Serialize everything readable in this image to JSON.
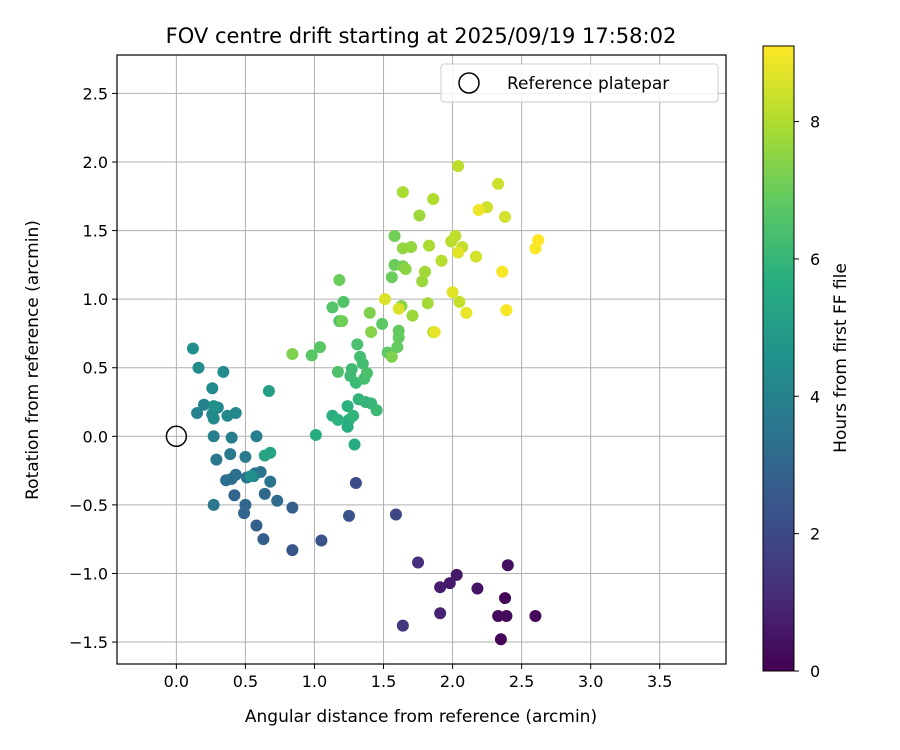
{
  "chart_data": {
    "type": "scatter",
    "title": "FOV centre drift starting at 2025/09/19 17:58:02",
    "xlabel": "Angular distance from reference (arcmin)",
    "ylabel": "Rotation from reference (arcmin)",
    "xlim": [
      -0.43,
      3.98
    ],
    "ylim": [
      -1.66,
      2.78
    ],
    "xticks": [
      0.0,
      0.5,
      1.0,
      1.5,
      2.0,
      2.5,
      3.0,
      3.5
    ],
    "xtick_labels": [
      "0.0",
      "0.5",
      "1.0",
      "1.5",
      "2.0",
      "2.5",
      "3.0",
      "3.5"
    ],
    "yticks": [
      -1.5,
      -1.0,
      -0.5,
      0.0,
      0.5,
      1.0,
      1.5,
      2.0,
      2.5
    ],
    "ytick_labels": [
      "−1.5",
      "−1.0",
      "−0.5",
      "0.0",
      "0.5",
      "1.0",
      "1.5",
      "2.0",
      "2.5"
    ],
    "grid": true,
    "legend": {
      "position": "top-right",
      "label": "Reference platepar"
    },
    "reference_point": {
      "x": 0.0,
      "y": 0.0
    },
    "colorbar": {
      "label": "Hours from first FF file",
      "range": [
        0,
        9.1
      ],
      "ticks": [
        0,
        2,
        4,
        6,
        8
      ],
      "tick_labels": [
        "0",
        "2",
        "4",
        "6",
        "8"
      ],
      "colormap": "viridis"
    },
    "points": [
      {
        "x": 2.38,
        "y": -1.18,
        "h": 0.1
      },
      {
        "x": 2.35,
        "y": -1.48,
        "h": 0.1
      },
      {
        "x": 2.6,
        "y": -1.31,
        "h": 0.15
      },
      {
        "x": 2.39,
        "y": -1.31,
        "h": 0.2
      },
      {
        "x": 2.33,
        "y": -1.31,
        "h": 0.2
      },
      {
        "x": 2.4,
        "y": -0.94,
        "h": 0.4
      },
      {
        "x": 2.18,
        "y": -1.11,
        "h": 0.5
      },
      {
        "x": 2.03,
        "y": -1.01,
        "h": 0.6
      },
      {
        "x": 1.98,
        "y": -1.07,
        "h": 0.6
      },
      {
        "x": 1.91,
        "y": -1.1,
        "h": 0.7
      },
      {
        "x": 1.91,
        "y": -1.29,
        "h": 0.9
      },
      {
        "x": 1.75,
        "y": -0.92,
        "h": 1.2
      },
      {
        "x": 1.64,
        "y": -1.38,
        "h": 1.4
      },
      {
        "x": 1.59,
        "y": -0.57,
        "h": 1.9
      },
      {
        "x": 1.3,
        "y": -0.34,
        "h": 2.1
      },
      {
        "x": 1.25,
        "y": -0.58,
        "h": 2.3
      },
      {
        "x": 1.05,
        "y": -0.76,
        "h": 2.3
      },
      {
        "x": 0.84,
        "y": -0.83,
        "h": 2.4
      },
      {
        "x": 0.84,
        "y": -0.52,
        "h": 2.7
      },
      {
        "x": 0.63,
        "y": -0.75,
        "h": 2.7
      },
      {
        "x": 0.58,
        "y": -0.65,
        "h": 2.8
      },
      {
        "x": 0.49,
        "y": -0.56,
        "h": 2.9
      },
      {
        "x": 0.5,
        "y": -0.5,
        "h": 3.0
      },
      {
        "x": 0.42,
        "y": -0.43,
        "h": 3.0
      },
      {
        "x": 0.64,
        "y": -0.42,
        "h": 3.1
      },
      {
        "x": 0.73,
        "y": -0.47,
        "h": 3.2
      },
      {
        "x": 0.4,
        "y": -0.31,
        "h": 3.2
      },
      {
        "x": 0.36,
        "y": -0.32,
        "h": 3.3
      },
      {
        "x": 0.43,
        "y": -0.28,
        "h": 3.3
      },
      {
        "x": 0.51,
        "y": -0.3,
        "h": 3.4
      },
      {
        "x": 0.57,
        "y": -0.27,
        "h": 3.4
      },
      {
        "x": 0.61,
        "y": -0.26,
        "h": 3.5
      },
      {
        "x": 0.68,
        "y": -0.33,
        "h": 3.5
      },
      {
        "x": 0.27,
        "y": -0.5,
        "h": 3.6
      },
      {
        "x": 0.29,
        "y": -0.17,
        "h": 3.6
      },
      {
        "x": 0.39,
        "y": -0.13,
        "h": 3.7
      },
      {
        "x": 0.5,
        "y": -0.15,
        "h": 3.7
      },
      {
        "x": 0.56,
        "y": -0.29,
        "h": 3.8
      },
      {
        "x": 0.4,
        "y": -0.01,
        "h": 3.8
      },
      {
        "x": 0.27,
        "y": 0.0,
        "h": 3.9
      },
      {
        "x": 0.58,
        "y": 0.0,
        "h": 3.9
      },
      {
        "x": 0.15,
        "y": 0.17,
        "h": 4.0
      },
      {
        "x": 0.2,
        "y": 0.23,
        "h": 4.0
      },
      {
        "x": 0.26,
        "y": 0.16,
        "h": 4.1
      },
      {
        "x": 0.3,
        "y": 0.21,
        "h": 4.1
      },
      {
        "x": 0.37,
        "y": 0.15,
        "h": 4.2
      },
      {
        "x": 0.43,
        "y": 0.17,
        "h": 4.2
      },
      {
        "x": 0.27,
        "y": 0.13,
        "h": 4.3
      },
      {
        "x": 0.26,
        "y": 0.35,
        "h": 4.3
      },
      {
        "x": 0.34,
        "y": 0.47,
        "h": 4.4
      },
      {
        "x": 0.16,
        "y": 0.5,
        "h": 4.4
      },
      {
        "x": 0.12,
        "y": 0.64,
        "h": 4.5
      },
      {
        "x": 0.27,
        "y": 0.22,
        "h": 4.6
      },
      {
        "x": 0.54,
        "y": -0.29,
        "h": 4.6
      },
      {
        "x": 0.67,
        "y": 0.33,
        "h": 5.1
      },
      {
        "x": 0.64,
        "y": -0.14,
        "h": 5.3
      },
      {
        "x": 0.68,
        "y": -0.12,
        "h": 5.3
      },
      {
        "x": 1.01,
        "y": 0.01,
        "h": 5.6
      },
      {
        "x": 1.29,
        "y": -0.06,
        "h": 5.5
      },
      {
        "x": 1.24,
        "y": 0.07,
        "h": 5.6
      },
      {
        "x": 1.25,
        "y": 0.12,
        "h": 5.7
      },
      {
        "x": 1.13,
        "y": 0.15,
        "h": 5.7
      },
      {
        "x": 1.17,
        "y": 0.12,
        "h": 5.8
      },
      {
        "x": 1.24,
        "y": 0.22,
        "h": 5.8
      },
      {
        "x": 1.28,
        "y": 0.15,
        "h": 5.9
      },
      {
        "x": 1.32,
        "y": 0.27,
        "h": 5.9
      },
      {
        "x": 1.37,
        "y": 0.25,
        "h": 6.0
      },
      {
        "x": 1.41,
        "y": 0.24,
        "h": 6.0
      },
      {
        "x": 1.45,
        "y": 0.19,
        "h": 6.1
      },
      {
        "x": 1.3,
        "y": 0.39,
        "h": 6.1
      },
      {
        "x": 1.26,
        "y": 0.44,
        "h": 6.2
      },
      {
        "x": 1.27,
        "y": 0.49,
        "h": 6.2
      },
      {
        "x": 1.33,
        "y": 0.58,
        "h": 6.3
      },
      {
        "x": 1.35,
        "y": 0.53,
        "h": 6.3
      },
      {
        "x": 1.36,
        "y": 0.42,
        "h": 6.3
      },
      {
        "x": 1.38,
        "y": 0.46,
        "h": 6.4
      },
      {
        "x": 1.31,
        "y": 0.67,
        "h": 6.4
      },
      {
        "x": 1.17,
        "y": 0.47,
        "h": 6.5
      },
      {
        "x": 1.18,
        "y": 0.84,
        "h": 6.5
      },
      {
        "x": 1.21,
        "y": 0.98,
        "h": 6.6
      },
      {
        "x": 1.13,
        "y": 0.94,
        "h": 6.6
      },
      {
        "x": 1.04,
        "y": 0.65,
        "h": 6.7
      },
      {
        "x": 0.98,
        "y": 0.59,
        "h": 6.7
      },
      {
        "x": 1.49,
        "y": 0.82,
        "h": 6.8
      },
      {
        "x": 1.53,
        "y": 0.61,
        "h": 6.8
      },
      {
        "x": 1.6,
        "y": 0.65,
        "h": 6.9
      },
      {
        "x": 1.61,
        "y": 0.72,
        "h": 6.9
      },
      {
        "x": 1.61,
        "y": 0.77,
        "h": 6.9
      },
      {
        "x": 1.56,
        "y": 1.16,
        "h": 7.0
      },
      {
        "x": 1.58,
        "y": 1.25,
        "h": 7.0
      },
      {
        "x": 1.18,
        "y": 1.14,
        "h": 7.0
      },
      {
        "x": 1.2,
        "y": 0.84,
        "h": 7.1
      },
      {
        "x": 1.58,
        "y": 1.46,
        "h": 7.1
      },
      {
        "x": 1.64,
        "y": 1.24,
        "h": 7.2
      },
      {
        "x": 1.56,
        "y": 0.58,
        "h": 7.3
      },
      {
        "x": 0.84,
        "y": 0.6,
        "h": 7.3
      },
      {
        "x": 1.4,
        "y": 0.9,
        "h": 7.3
      },
      {
        "x": 1.41,
        "y": 0.76,
        "h": 7.4
      },
      {
        "x": 1.63,
        "y": 0.95,
        "h": 7.4
      },
      {
        "x": 1.66,
        "y": 1.22,
        "h": 7.5
      },
      {
        "x": 1.64,
        "y": 1.37,
        "h": 7.6
      },
      {
        "x": 1.7,
        "y": 1.38,
        "h": 7.6
      },
      {
        "x": 1.71,
        "y": 0.88,
        "h": 7.7
      },
      {
        "x": 1.78,
        "y": 1.13,
        "h": 7.7
      },
      {
        "x": 1.76,
        "y": 1.61,
        "h": 7.7
      },
      {
        "x": 1.8,
        "y": 1.2,
        "h": 7.8
      },
      {
        "x": 1.82,
        "y": 0.97,
        "h": 7.8
      },
      {
        "x": 1.83,
        "y": 1.39,
        "h": 7.9
      },
      {
        "x": 1.64,
        "y": 1.78,
        "h": 7.9
      },
      {
        "x": 1.86,
        "y": 0.76,
        "h": 8.0
      },
      {
        "x": 1.86,
        "y": 1.73,
        "h": 8.0
      },
      {
        "x": 1.92,
        "y": 1.28,
        "h": 8.1
      },
      {
        "x": 1.99,
        "y": 1.42,
        "h": 8.1
      },
      {
        "x": 2.02,
        "y": 1.46,
        "h": 8.2
      },
      {
        "x": 2.04,
        "y": 1.97,
        "h": 8.2
      },
      {
        "x": 2.05,
        "y": 0.98,
        "h": 8.3
      },
      {
        "x": 2.07,
        "y": 1.38,
        "h": 8.3
      },
      {
        "x": 2.25,
        "y": 1.67,
        "h": 8.4
      },
      {
        "x": 2.33,
        "y": 1.84,
        "h": 8.4
      },
      {
        "x": 2.38,
        "y": 1.6,
        "h": 8.5
      },
      {
        "x": 2.17,
        "y": 1.31,
        "h": 8.5
      },
      {
        "x": 1.51,
        "y": 1.0,
        "h": 8.6
      },
      {
        "x": 1.61,
        "y": 0.93,
        "h": 8.6
      },
      {
        "x": 2.0,
        "y": 1.05,
        "h": 8.7
      },
      {
        "x": 2.04,
        "y": 1.34,
        "h": 8.7
      },
      {
        "x": 1.87,
        "y": 0.76,
        "h": 8.8
      },
      {
        "x": 2.1,
        "y": 0.9,
        "h": 8.8
      },
      {
        "x": 2.19,
        "y": 1.65,
        "h": 8.9
      },
      {
        "x": 2.36,
        "y": 1.2,
        "h": 9.0
      },
      {
        "x": 2.39,
        "y": 0.92,
        "h": 9.0
      },
      {
        "x": 2.6,
        "y": 1.37,
        "h": 9.05
      },
      {
        "x": 2.62,
        "y": 1.43,
        "h": 9.1
      }
    ]
  }
}
